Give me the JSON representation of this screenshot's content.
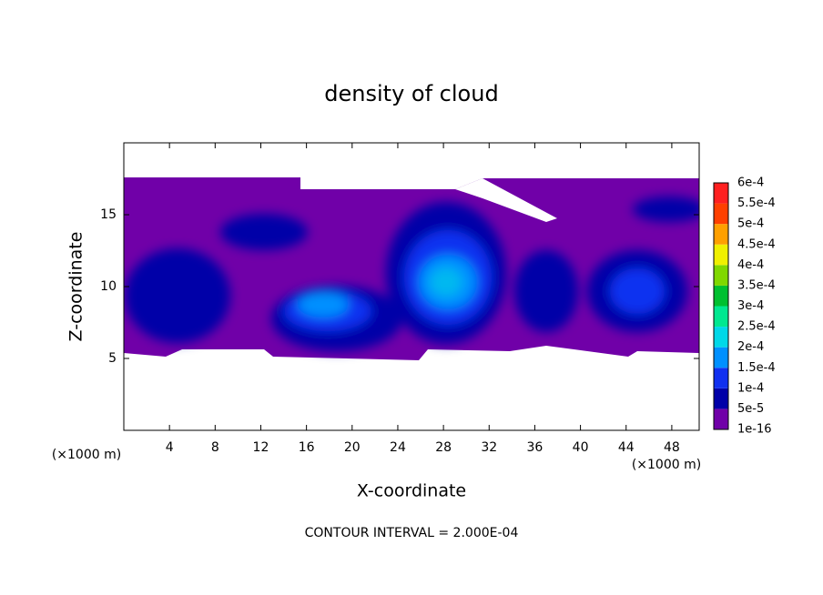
{
  "chart_data": {
    "type": "contour",
    "title": "density of cloud",
    "x_label": "X-coordinate",
    "y_label": "Z-coordinate",
    "x_unit_label": "(×1000 m)",
    "y_unit_label": "(×1000 m)",
    "annotation": "CONTOUR INTERVAL = 2.000E-04",
    "xlim": [
      0,
      50.4
    ],
    "xticks": [
      4,
      8,
      12,
      16,
      20,
      24,
      28,
      32,
      36,
      40,
      44,
      48
    ],
    "ylim": [
      0,
      20
    ],
    "yticks": [
      5,
      10,
      15
    ],
    "colorbar_levels": [
      {
        "value": 1e-16,
        "label": "1e-16"
      },
      {
        "value": 5e-05,
        "label": "5e-5"
      },
      {
        "value": 0.0001,
        "label": "1e-4"
      },
      {
        "value": 0.00015,
        "label": "1.5e-4"
      },
      {
        "value": 0.0002,
        "label": "2e-4"
      },
      {
        "value": 0.00025,
        "label": "2.5e-4"
      },
      {
        "value": 0.0003,
        "label": "3e-4"
      },
      {
        "value": 0.00035,
        "label": "3.5e-4"
      },
      {
        "value": 0.0004,
        "label": "4e-4"
      },
      {
        "value": 0.00045,
        "label": "4.5e-4"
      },
      {
        "value": 0.0005,
        "label": "5e-4"
      },
      {
        "value": 0.00055,
        "label": "5.5e-4"
      },
      {
        "value": 0.0006,
        "label": "6e-4"
      }
    ],
    "colorbar_colors": [
      "#7000a8",
      "#0000a8",
      "#1030f0",
      "#0090ff",
      "#00d8e8",
      "#00e890",
      "#00c030",
      "#80d800",
      "#f0f000",
      "#ffa000",
      "#ff4000",
      "#ff2020",
      "#ff9090"
    ]
  }
}
